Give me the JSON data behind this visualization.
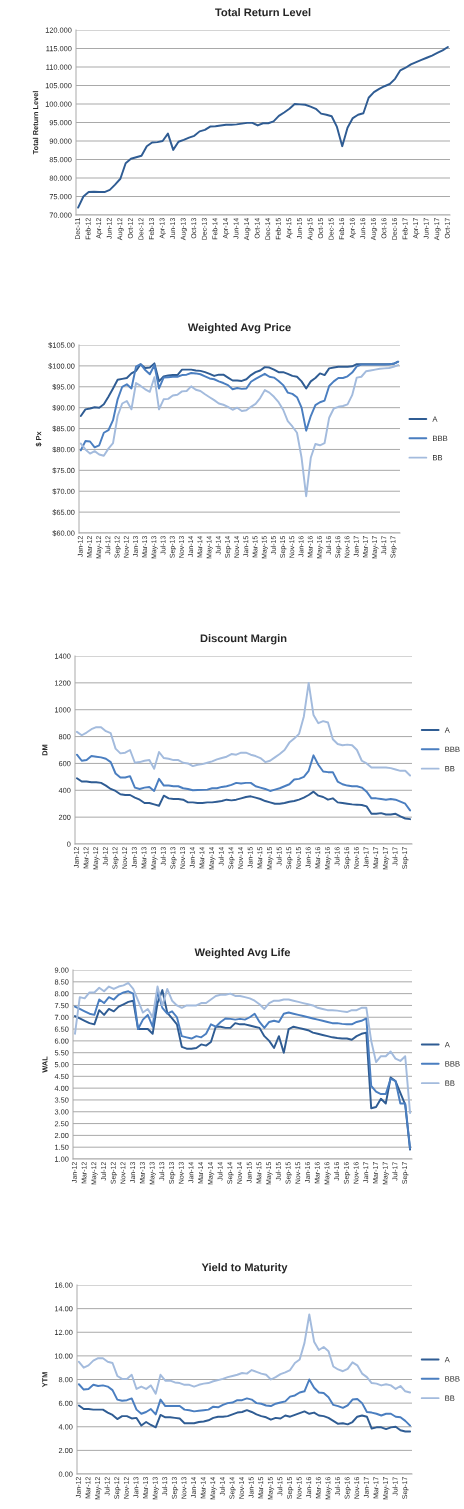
{
  "chart_data": [
    {
      "type": "line",
      "title": "Total Return Level",
      "ylabel": "Total Return Level",
      "categories": [
        "Dec-11",
        null,
        "Feb-12",
        null,
        "Apr-12",
        null,
        "Jun-12",
        null,
        "Aug-12",
        null,
        "Oct-12",
        null,
        "Dec-12",
        null,
        "Feb-13",
        null,
        "Apr-13",
        null,
        "Jun-13",
        null,
        "Aug-13",
        null,
        "Oct-13",
        null,
        "Dec-13",
        null,
        "Feb-14",
        null,
        "Apr-14",
        null,
        "Jun-14",
        null,
        "Aug-14",
        null,
        "Oct-14",
        null,
        "Dec-14",
        null,
        "Feb-15",
        null,
        "Apr-15",
        null,
        "Jun-15",
        null,
        "Aug-15",
        null,
        "Oct-15",
        null,
        "Dec-15",
        null,
        "Feb-16",
        null,
        "Apr-16",
        null,
        "Jun-16",
        null,
        "Aug-16",
        null,
        "Oct-16",
        null,
        "Dec-16",
        null,
        "Feb-17",
        null,
        "Apr-17",
        null,
        "Jun-17",
        null,
        "Aug-17",
        null,
        "Oct-17"
      ],
      "series": [
        {
          "color": "#2f5c93",
          "values": [
            72,
            75,
            76.2,
            76.3,
            76.2,
            76.2,
            76.8,
            78.2,
            79.8,
            84,
            85.2,
            85.6,
            86,
            88.6,
            89.6,
            89.7,
            90,
            92,
            87.6,
            89.8,
            90.3,
            90.9,
            91.4,
            92.6,
            93,
            93.9,
            94,
            94.2,
            94.4,
            94.4,
            94.5,
            94.7,
            94.9,
            94.9,
            94.2,
            94.8,
            94.8,
            95.3,
            96.8,
            97.7,
            98.7,
            100,
            99.9,
            99.8,
            99.3,
            98.7,
            97.4,
            97.1,
            96.7,
            93.8,
            88.6,
            93.6,
            96.2,
            97.1,
            97.5,
            101.7,
            103.2,
            104.1,
            104.8,
            105.4,
            106.8,
            109.1,
            109.8,
            110.7,
            111.3,
            111.9,
            112.5,
            113.1,
            113.8,
            114.5,
            115.4
          ]
        }
      ],
      "ylim": [
        70,
        120
      ],
      "yticks": [
        {
          "value": 70,
          "label": "70.000"
        },
        {
          "value": 75,
          "label": "75.000"
        },
        {
          "value": 80,
          "label": "80.000"
        },
        {
          "value": 85,
          "label": "85.000"
        },
        {
          "value": 90,
          "label": "90.000"
        },
        {
          "value": 95,
          "label": "95.000"
        },
        {
          "value": 100,
          "label": "100.000"
        },
        {
          "value": 105,
          "label": "105.000"
        },
        {
          "value": 110,
          "label": "110.000"
        },
        {
          "value": 115,
          "label": "115.000"
        },
        {
          "value": 120,
          "label": "120.000"
        }
      ],
      "grid": "y",
      "legend": false,
      "marker": "none",
      "line_style": "solid"
    },
    {
      "type": "line",
      "title": "Weighted Avg Price",
      "ylabel": "$ Px",
      "categories": [
        "Jan-12",
        null,
        "Mar-12",
        null,
        "May-12",
        null,
        "Jul-12",
        null,
        "Sep-12",
        null,
        "Nov-12",
        null,
        "Jan-13",
        null,
        "Mar-13",
        null,
        "May-13",
        null,
        "Jul-13",
        null,
        "Sep-13",
        null,
        "Nov-13",
        null,
        "Jan-14",
        null,
        "Mar-14",
        null,
        "May-14",
        null,
        "Jul-14",
        null,
        "Sep-14",
        null,
        "Nov-14",
        null,
        "Jan-15",
        null,
        "Mar-15",
        null,
        "May-15",
        null,
        "Jul-15",
        null,
        "Sep-15",
        null,
        "Nov-15",
        null,
        "Jan-16",
        null,
        "Mar-16",
        null,
        "May-16",
        null,
        "Jul-16",
        null,
        "Sep-16",
        null,
        "Nov-16",
        null,
        "Jan-17",
        null,
        "Mar-17",
        null,
        "May-17",
        null,
        "Jul-17",
        null,
        "Sep-17",
        null
      ],
      "series": [
        {
          "name": "A",
          "color": "#2f5c93",
          "values": [
            88,
            89.6,
            89.8,
            90.1,
            90,
            90.8,
            92.6,
            94.6,
            96.7,
            96.9,
            97.1,
            98.2,
            98.8,
            100.4,
            99.5,
            99.6,
            100.6,
            96.3,
            97.5,
            97.7,
            97.8,
            97.8,
            99.1,
            99.1,
            99.1,
            98.9,
            98.8,
            98.5,
            98.1,
            97.6,
            97.9,
            97.9,
            97.2,
            96.5,
            96.5,
            96.4,
            96.8,
            97.8,
            98.5,
            98.9,
            99.7,
            99.6,
            99.1,
            98.5,
            98.5,
            98.1,
            97.6,
            97.4,
            96.3,
            94.6,
            96.3,
            97.1,
            98.2,
            97.8,
            99.4,
            99.6,
            99.8,
            99.8,
            99.8,
            99.9,
            100.4,
            100.4,
            100.4,
            100.4,
            100.4,
            100.4,
            100.4,
            100.4,
            100.5,
            101
          ]
        },
        {
          "name": "BBB",
          "color": "#4a7ec0",
          "values": [
            79.8,
            82,
            81.9,
            80.5,
            81,
            84,
            84.6,
            87,
            92,
            95,
            95.6,
            94.6,
            99.8,
            100.4,
            99,
            98,
            100.2,
            94.6,
            97.2,
            97.3,
            97.4,
            97.4,
            97.8,
            97.9,
            98.3,
            98.2,
            98,
            97.5,
            97,
            96.8,
            96.3,
            95.9,
            95.4,
            94.4,
            94.7,
            94.5,
            94.6,
            96.2,
            96.9,
            97.5,
            98.1,
            97.4,
            97.2,
            96.4,
            95.4,
            93.6,
            93.3,
            92.5,
            90,
            84.5,
            88,
            90.6,
            91.3,
            91.7,
            95.2,
            96.3,
            97.1,
            97.1,
            97.5,
            98.4,
            99.9,
            100.3,
            100.3,
            100.3,
            100.3,
            100.3,
            100.3,
            100.4,
            100.5,
            101
          ]
        },
        {
          "name": "BB",
          "color": "#a3bbdd",
          "values": [
            81.4,
            80,
            79,
            79.6,
            78.8,
            78.5,
            80.2,
            81.5,
            88,
            91,
            91.6,
            89.6,
            95.9,
            95.2,
            94.4,
            93.8,
            97.3,
            89.6,
            92,
            92.1,
            92.9,
            93.1,
            93.9,
            94,
            95.1,
            94.3,
            94,
            93.2,
            92.5,
            91.8,
            91,
            90.7,
            90.2,
            89.5,
            90,
            89.2,
            89.4,
            90.2,
            90.9,
            92.3,
            94.2,
            93.6,
            92.6,
            91.3,
            89.5,
            86.8,
            85.5,
            84,
            78,
            68.8,
            78,
            81.3,
            81,
            81.5,
            87.6,
            89.8,
            90.2,
            90.4,
            90.8,
            93,
            97.2,
            97.4,
            98.7,
            98.9,
            99.1,
            99.3,
            99.4,
            99.5,
            99.8,
            100.2
          ]
        }
      ],
      "ylim": [
        60,
        105
      ],
      "yticks": [
        {
          "value": 60,
          "label": "$60.00"
        },
        {
          "value": 65,
          "label": "$65.00"
        },
        {
          "value": 70,
          "label": "$70.00"
        },
        {
          "value": 75,
          "label": "$75.00"
        },
        {
          "value": 80,
          "label": "$80.00"
        },
        {
          "value": 85,
          "label": "$85.00"
        },
        {
          "value": 90,
          "label": "$90.00"
        },
        {
          "value": 95,
          "label": "$95.00"
        },
        {
          "value": 100,
          "label": "$100.00"
        },
        {
          "value": 105,
          "label": "$105.00"
        }
      ],
      "grid": "y",
      "legend": "right",
      "marker": "none",
      "line_style": "solid"
    },
    {
      "type": "line",
      "title": "Discount Margin",
      "ylabel": "DM",
      "categories": [
        "Jan-12",
        null,
        "Mar-12",
        null,
        "May-12",
        null,
        "Jul-12",
        null,
        "Sep-12",
        null,
        "Nov-12",
        null,
        "Jan-13",
        null,
        "Mar-13",
        null,
        "May-13",
        null,
        "Jul-13",
        null,
        "Sep-13",
        null,
        "Nov-13",
        null,
        "Jan-14",
        null,
        "Mar-14",
        null,
        "May-14",
        null,
        "Jul-14",
        null,
        "Sep-14",
        null,
        "Nov-14",
        null,
        "Jan-15",
        null,
        "Mar-15",
        null,
        "May-15",
        null,
        "Jul-15",
        null,
        "Sep-15",
        null,
        "Nov-15",
        null,
        "Jan-16",
        null,
        "Mar-16",
        null,
        "May-16",
        null,
        "Jul-16",
        null,
        "Sep-16",
        null,
        "Nov-16",
        null,
        "Jan-17",
        null,
        "Mar-17",
        null,
        "May-17",
        null,
        "Jul-17",
        null,
        "Sep-17",
        null
      ],
      "series": [
        {
          "name": "A",
          "color": "#2f5c93",
          "values": [
            490,
            465,
            465,
            460,
            460,
            455,
            435,
            410,
            395,
            370,
            365,
            365,
            345,
            330,
            305,
            305,
            295,
            285,
            360,
            340,
            335,
            335,
            330,
            310,
            310,
            305,
            305,
            310,
            310,
            315,
            320,
            330,
            325,
            330,
            340,
            350,
            355,
            345,
            335,
            320,
            310,
            300,
            300,
            305,
            315,
            320,
            330,
            345,
            365,
            390,
            360,
            350,
            330,
            340,
            310,
            305,
            300,
            295,
            293,
            290,
            280,
            225,
            225,
            230,
            220,
            220,
            225,
            205,
            190,
            185
          ]
        },
        {
          "name": "BBB",
          "color": "#4a7ec0",
          "values": [
            665,
            620,
            625,
            655,
            650,
            645,
            635,
            610,
            525,
            495,
            495,
            505,
            420,
            410,
            420,
            425,
            395,
            485,
            435,
            435,
            430,
            430,
            415,
            410,
            400,
            402,
            403,
            405,
            415,
            415,
            425,
            430,
            440,
            455,
            450,
            455,
            455,
            430,
            420,
            410,
            395,
            405,
            415,
            430,
            445,
            480,
            485,
            500,
            545,
            660,
            590,
            540,
            535,
            535,
            465,
            445,
            435,
            430,
            430,
            420,
            390,
            340,
            340,
            335,
            330,
            335,
            330,
            315,
            300,
            250
          ]
        },
        {
          "name": "BB",
          "color": "#a3bbdd",
          "values": [
            835,
            810,
            830,
            855,
            870,
            870,
            840,
            825,
            710,
            675,
            680,
            700,
            605,
            610,
            620,
            625,
            560,
            685,
            640,
            635,
            625,
            625,
            605,
            600,
            580,
            590,
            595,
            605,
            615,
            630,
            640,
            650,
            670,
            665,
            680,
            680,
            665,
            655,
            640,
            610,
            620,
            645,
            670,
            700,
            755,
            785,
            820,
            950,
            1200,
            960,
            900,
            915,
            905,
            780,
            745,
            735,
            740,
            735,
            700,
            620,
            600,
            570,
            570,
            570,
            570,
            565,
            555,
            545,
            545,
            510
          ]
        }
      ],
      "ylim": [
        0,
        1400
      ],
      "yticks": [
        0,
        200,
        400,
        600,
        800,
        1000,
        1200,
        1400
      ],
      "grid": "y",
      "legend": "right",
      "marker": "none",
      "line_style": "solid"
    },
    {
      "type": "line",
      "title": "Weighted Avg Life",
      "ylabel": "WAL",
      "categories": [
        "Jan-12",
        null,
        "Mar-12",
        null,
        "May-12",
        null,
        "Jul-12",
        null,
        "Sep-12",
        null,
        "Nov-12",
        null,
        "Jan-13",
        null,
        "Mar-13",
        null,
        "May-13",
        null,
        "Jul-13",
        null,
        "Sep-13",
        null,
        "Nov-13",
        null,
        "Jan-14",
        null,
        "Mar-14",
        null,
        "May-14",
        null,
        "Jul-14",
        null,
        "Sep-14",
        null,
        "Nov-14",
        null,
        "Jan-15",
        null,
        "Mar-15",
        null,
        "May-15",
        null,
        "Jul-15",
        null,
        "Sep-15",
        null,
        "Nov-15",
        null,
        "Jan-16",
        null,
        "Mar-16",
        null,
        "May-16",
        null,
        "Jul-16",
        null,
        "Sep-16",
        null,
        "Nov-16",
        null,
        "Jan-17",
        null,
        "Mar-17",
        null,
        "May-17",
        null,
        "Jul-17",
        null,
        "Sep-17",
        null
      ],
      "series": [
        {
          "name": "A",
          "color": "#2f5c93",
          "values": [
            7.05,
            6.95,
            6.85,
            6.75,
            6.7,
            7.3,
            7.1,
            7.35,
            7.25,
            7.45,
            7.55,
            7.65,
            7.7,
            6.5,
            6.5,
            6.5,
            6.3,
            7.6,
            8.15,
            7.2,
            6.95,
            6.7,
            5.75,
            5.67,
            5.67,
            5.7,
            5.85,
            5.8,
            5.95,
            6.6,
            6.6,
            6.55,
            6.55,
            6.75,
            6.7,
            6.7,
            6.65,
            6.6,
            6.55,
            6.2,
            6.0,
            5.7,
            6.2,
            5.5,
            6.5,
            6.6,
            6.55,
            6.5,
            6.45,
            6.35,
            6.3,
            6.25,
            6.2,
            6.15,
            6.12,
            6.1,
            6.1,
            6.05,
            6.2,
            6.3,
            6.35,
            3.15,
            3.2,
            3.55,
            3.35,
            4.45,
            4.3,
            3.8,
            3.3,
            1.4
          ]
        },
        {
          "name": "BBB",
          "color": "#4a7ec0",
          "values": [
            7.45,
            7.35,
            7.25,
            7.15,
            7.1,
            7.75,
            7.6,
            7.85,
            7.75,
            7.95,
            8.05,
            8.1,
            8.0,
            6.5,
            6.9,
            7.1,
            6.6,
            8.1,
            7.4,
            7.15,
            7.25,
            7.0,
            6.2,
            6.15,
            6.1,
            6.2,
            6.15,
            6.3,
            6.7,
            6.6,
            6.8,
            6.95,
            6.93,
            6.9,
            6.93,
            6.9,
            7.0,
            7.15,
            6.8,
            6.55,
            6.8,
            6.85,
            6.8,
            7.15,
            7.2,
            7.15,
            7.1,
            7.05,
            7.0,
            6.95,
            6.9,
            6.85,
            6.8,
            6.75,
            6.75,
            6.72,
            6.7,
            6.7,
            6.8,
            6.85,
            6.95,
            4.1,
            3.85,
            3.75,
            3.75,
            4.4,
            4.3,
            3.35,
            3.35,
            1.45
          ]
        },
        {
          "name": "BB",
          "color": "#a3bbdd",
          "values": [
            6.3,
            7.85,
            7.8,
            8.05,
            8.05,
            8.25,
            8.1,
            8.3,
            8.2,
            8.3,
            8.35,
            8.45,
            8.2,
            7.7,
            7.2,
            7.35,
            7.0,
            8.3,
            7.5,
            8.2,
            7.7,
            7.5,
            7.4,
            7.5,
            7.5,
            7.5,
            7.6,
            7.6,
            7.75,
            7.9,
            7.95,
            7.95,
            8.0,
            7.9,
            7.9,
            7.85,
            7.8,
            7.7,
            7.55,
            7.35,
            7.6,
            7.7,
            7.7,
            7.75,
            7.75,
            7.7,
            7.65,
            7.6,
            7.55,
            7.5,
            7.4,
            7.35,
            7.3,
            7.3,
            7.28,
            7.25,
            7.22,
            7.3,
            7.3,
            7.4,
            7.4,
            6.0,
            5.1,
            5.35,
            5.35,
            5.55,
            5.25,
            5.15,
            5.35,
            2.95
          ]
        }
      ],
      "ylim": [
        1,
        9
      ],
      "yticks": [
        {
          "value": 1,
          "label": "1.00"
        },
        {
          "value": 1.5,
          "label": "1.50"
        },
        {
          "value": 2,
          "label": "2.00"
        },
        {
          "value": 2.5,
          "label": "2.50"
        },
        {
          "value": 3,
          "label": "3.00"
        },
        {
          "value": 3.5,
          "label": "3.50"
        },
        {
          "value": 4,
          "label": "4.00"
        },
        {
          "value": 4.5,
          "label": "4.50"
        },
        {
          "value": 5,
          "label": "5.00"
        },
        {
          "value": 5.5,
          "label": "5.50"
        },
        {
          "value": 6,
          "label": "6.00"
        },
        {
          "value": 6.5,
          "label": "6.50"
        },
        {
          "value": 7,
          "label": "7.00"
        },
        {
          "value": 7.5,
          "label": "7.50"
        },
        {
          "value": 8,
          "label": "8.00"
        },
        {
          "value": 8.5,
          "label": "8.50"
        },
        {
          "value": 9,
          "label": "9.00"
        }
      ],
      "grid": "y",
      "legend": "right",
      "marker": "none",
      "line_style": "solid"
    },
    {
      "type": "line",
      "title": "Yield to Maturity",
      "ylabel": "YTM",
      "categories": [
        "Jan-12",
        null,
        "Mar-12",
        null,
        "May-12",
        null,
        "Jul-12",
        null,
        "Sep-12",
        null,
        "Nov-12",
        null,
        "Jan-13",
        null,
        "Mar-13",
        null,
        "May-13",
        null,
        "Jul-13",
        null,
        "Sep-13",
        null,
        "Nov-13",
        null,
        "Jan-14",
        null,
        "Mar-14",
        null,
        "May-14",
        null,
        "Jul-14",
        null,
        "Sep-14",
        null,
        "Nov-14",
        null,
        "Jan-15",
        null,
        "Mar-15",
        null,
        "May-15",
        null,
        "Jul-15",
        null,
        "Sep-15",
        null,
        "Nov-15",
        null,
        "Jan-16",
        null,
        "Mar-16",
        null,
        "May-16",
        null,
        "Jul-16",
        null,
        "Sep-16",
        null,
        "Nov-16",
        null,
        "Jan-17",
        null,
        "Mar-17",
        null,
        "May-17",
        null,
        "Jul-17",
        null,
        "Sep-17",
        null
      ],
      "series": [
        {
          "name": "A",
          "color": "#2f5c93",
          "values": [
            5.8,
            5.5,
            5.5,
            5.45,
            5.45,
            5.45,
            5.2,
            5.0,
            4.65,
            4.9,
            4.9,
            4.7,
            4.75,
            4.1,
            4.4,
            4.15,
            3.95,
            5.0,
            4.8,
            4.8,
            4.75,
            4.7,
            4.3,
            4.3,
            4.3,
            4.4,
            4.45,
            4.55,
            4.75,
            4.85,
            4.85,
            4.9,
            5.05,
            5.2,
            5.25,
            5.4,
            5.25,
            5.05,
            4.9,
            4.8,
            4.6,
            4.75,
            4.7,
            4.95,
            4.85,
            5.0,
            5.15,
            5.3,
            5.1,
            5.2,
            4.95,
            4.9,
            4.75,
            4.5,
            4.25,
            4.3,
            4.2,
            4.4,
            4.85,
            4.95,
            4.85,
            3.85,
            3.95,
            3.95,
            3.8,
            3.95,
            4.0,
            3.7,
            3.6,
            3.6
          ]
        },
        {
          "name": "BBB",
          "color": "#4a7ec0",
          "values": [
            7.6,
            7.15,
            7.2,
            7.55,
            7.45,
            7.5,
            7.4,
            7.1,
            6.3,
            6.2,
            6.25,
            6.4,
            5.45,
            5.1,
            5.25,
            5.5,
            5.05,
            6.3,
            5.75,
            5.75,
            5.75,
            5.75,
            5.45,
            5.4,
            5.3,
            5.35,
            5.4,
            5.45,
            5.7,
            5.65,
            5.85,
            6.0,
            6.05,
            6.25,
            6.25,
            6.4,
            6.3,
            6.0,
            5.95,
            5.8,
            5.75,
            5.95,
            6.05,
            6.15,
            6.55,
            6.65,
            6.9,
            7.0,
            8.0,
            7.3,
            6.9,
            6.85,
            6.5,
            5.85,
            5.75,
            5.6,
            5.8,
            6.3,
            6.35,
            6.0,
            5.25,
            5.2,
            5.1,
            4.95,
            5.1,
            5.1,
            4.85,
            4.8,
            4.5,
            4.1
          ]
        },
        {
          "name": "BB",
          "color": "#a3bbdd",
          "values": [
            9.5,
            9.0,
            9.2,
            9.6,
            9.8,
            9.8,
            9.5,
            9.4,
            8.3,
            8.05,
            8.05,
            8.4,
            7.2,
            7.4,
            7.2,
            7.5,
            6.8,
            8.4,
            7.9,
            7.9,
            7.75,
            7.7,
            7.55,
            7.55,
            7.4,
            7.55,
            7.65,
            7.7,
            7.85,
            7.95,
            8.05,
            8.2,
            8.3,
            8.4,
            8.55,
            8.5,
            8.8,
            8.65,
            8.5,
            8.4,
            8.0,
            8.2,
            8.45,
            8.6,
            8.8,
            9.4,
            9.7,
            11.1,
            13.5,
            11.2,
            10.5,
            10.75,
            10.4,
            9.1,
            8.85,
            8.7,
            8.9,
            9.45,
            9.2,
            8.5,
            8.2,
            7.7,
            7.65,
            7.5,
            7.6,
            7.5,
            7.2,
            7.45,
            7.0,
            6.9
          ]
        }
      ],
      "ylim": [
        0,
        16
      ],
      "yticks": [
        {
          "value": 0,
          "label": "0.00"
        },
        {
          "value": 2,
          "label": "2.00"
        },
        {
          "value": 4,
          "label": "4.00"
        },
        {
          "value": 6,
          "label": "6.00"
        },
        {
          "value": 8,
          "label": "8.00"
        },
        {
          "value": 10,
          "label": "10.00"
        },
        {
          "value": 12,
          "label": "12.00"
        },
        {
          "value": 14,
          "label": "14.00"
        },
        {
          "value": 16,
          "label": "16.00"
        }
      ],
      "grid": "y",
      "legend": "right",
      "marker": "none",
      "line_style": "solid"
    }
  ]
}
